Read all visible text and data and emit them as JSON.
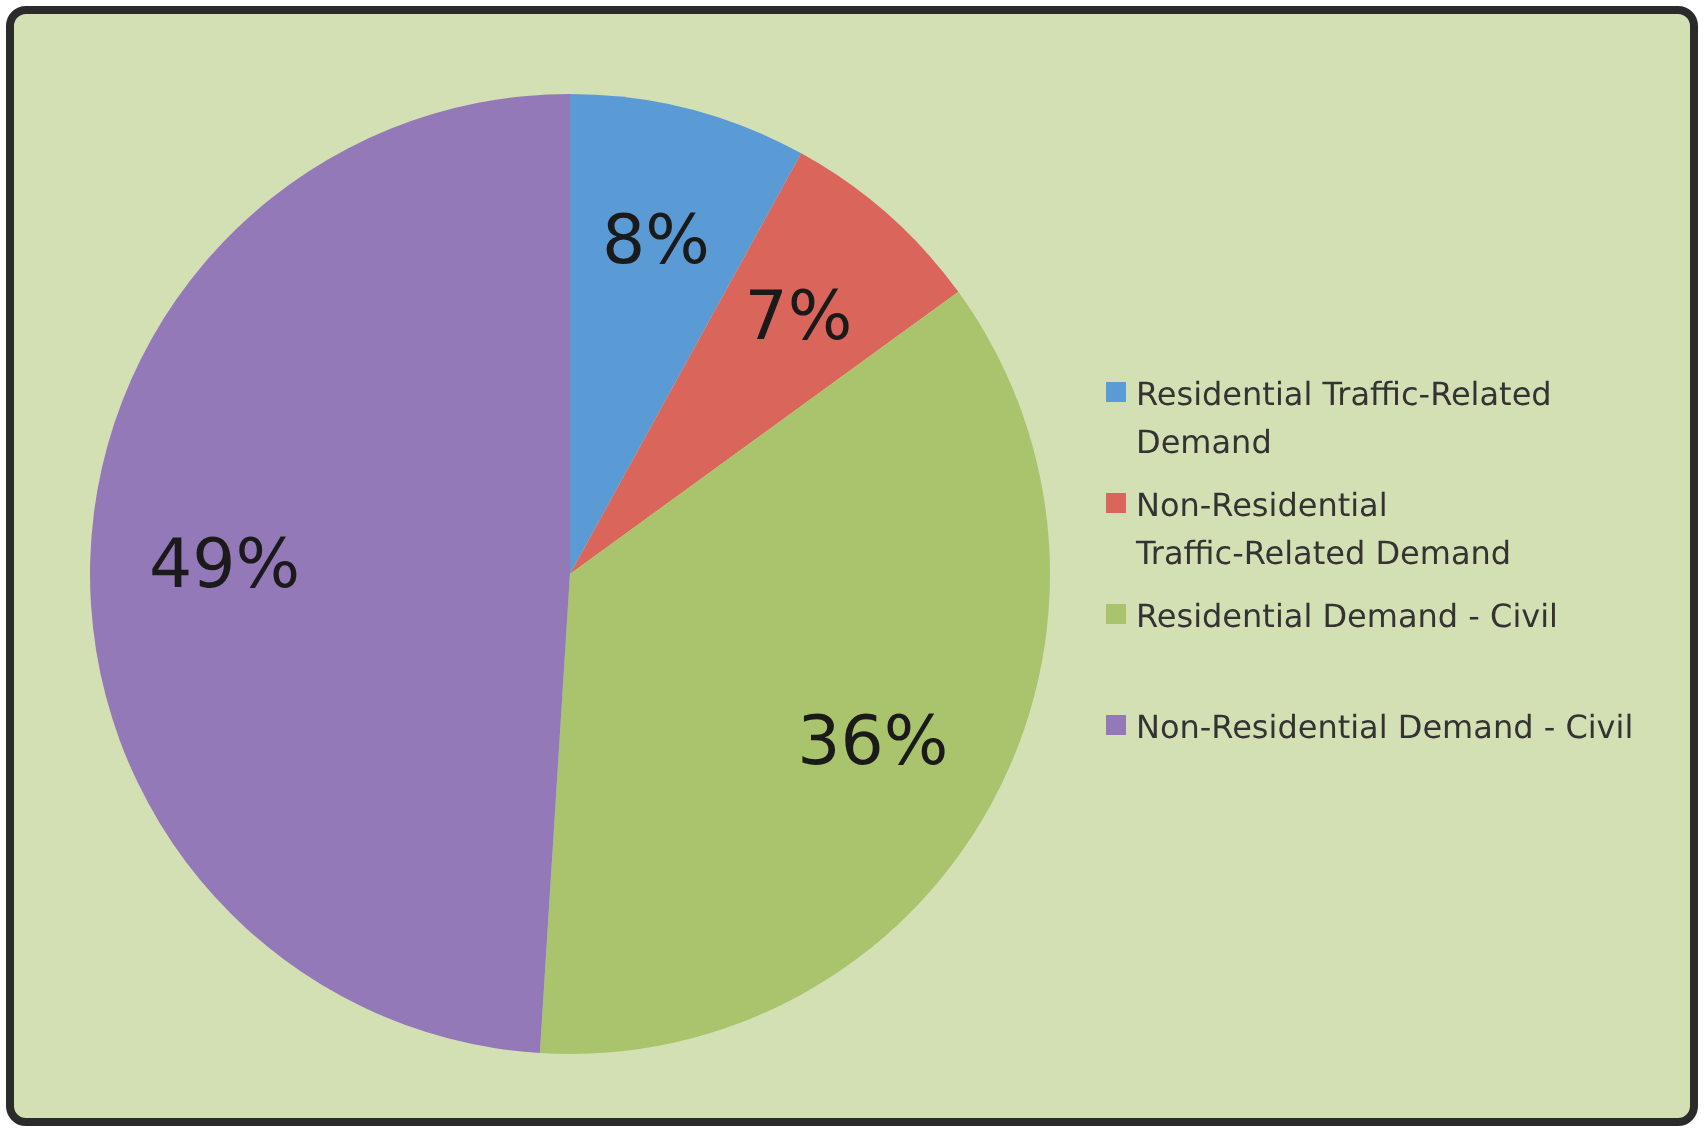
{
  "chart_data": {
    "type": "pie",
    "categories": [
      "Residential Traffic-Related Demand",
      "Non-Residential Traffic-Related Demand",
      "Residential Demand - Civil",
      "Non-Residential Demand - Civil"
    ],
    "values": [
      8,
      7,
      36,
      49
    ],
    "colors": [
      "#5b9bd5",
      "#d9655b",
      "#a9c46c",
      "#9479b9"
    ],
    "value_labels": [
      "8%",
      "7%",
      "36%",
      "49%"
    ],
    "legend": "right"
  }
}
